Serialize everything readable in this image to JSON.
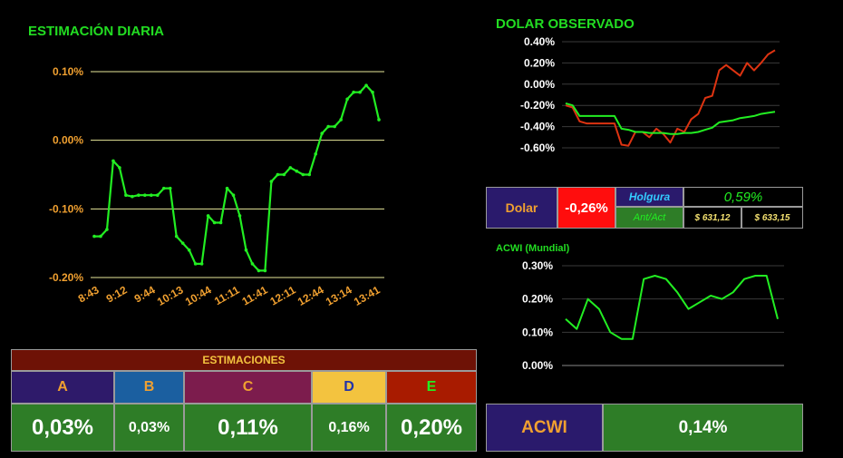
{
  "estimacion": {
    "title": "ESTIMACIÓN DIARIA",
    "chart_data": {
      "type": "line",
      "title": "ESTIMACIÓN DIARIA",
      "ylim": [
        -0.2,
        0.1
      ],
      "y_ticks": [
        "0.10%",
        "0.00%",
        "-0.10%",
        "-0.20%"
      ],
      "x_ticks": [
        "8:43",
        "9:12",
        "9:44",
        "10:13",
        "10:44",
        "11:11",
        "11:41",
        "12:11",
        "12:44",
        "13:14",
        "13:41"
      ],
      "grid": true,
      "series": [
        {
          "color": "#22ee22",
          "values": [
            -0.14,
            -0.14,
            -0.13,
            -0.03,
            -0.04,
            -0.08,
            -0.082,
            -0.08,
            -0.08,
            -0.08,
            -0.08,
            -0.07,
            -0.07,
            -0.14,
            -0.15,
            -0.16,
            -0.18,
            -0.18,
            -0.11,
            -0.12,
            -0.12,
            -0.07,
            -0.08,
            -0.11,
            -0.16,
            -0.18,
            -0.19,
            -0.19,
            -0.06,
            -0.05,
            -0.05,
            -0.04,
            -0.045,
            -0.05,
            -0.05,
            -0.02,
            0.01,
            0.02,
            0.02,
            0.03,
            0.06,
            0.07,
            0.07,
            0.08,
            0.07,
            0.03
          ]
        }
      ]
    }
  },
  "estimaciones": {
    "header": "ESTIMACIONES",
    "columns": [
      {
        "label": "A",
        "value": "0,03%"
      },
      {
        "label": "B",
        "value": "0,03%"
      },
      {
        "label": "C",
        "value": "0,11%"
      },
      {
        "label": "D",
        "value": "0,16%"
      },
      {
        "label": "E",
        "value": "0,20%"
      }
    ]
  },
  "dolar": {
    "title": "DOLAR OBSERVADO",
    "chart_data": {
      "type": "line",
      "title": "DOLAR OBSERVADO",
      "ylim": [
        -0.6,
        0.4
      ],
      "y_ticks": [
        "0.40%",
        "0.20%",
        "0.00%",
        "-0.20%",
        "-0.40%",
        "-0.60%"
      ],
      "grid": true,
      "series": [
        {
          "color": "#dd3311",
          "values": [
            -0.2,
            -0.22,
            -0.35,
            -0.37,
            -0.37,
            -0.37,
            -0.37,
            -0.37,
            -0.57,
            -0.58,
            -0.45,
            -0.45,
            -0.5,
            -0.42,
            -0.47,
            -0.55,
            -0.42,
            -0.45,
            -0.33,
            -0.28,
            -0.13,
            -0.11,
            0.13,
            0.18,
            0.13,
            0.08,
            0.2,
            0.13,
            0.2,
            0.28,
            0.32
          ]
        },
        {
          "color": "#22ee22",
          "values": [
            -0.18,
            -0.2,
            -0.3,
            -0.3,
            -0.3,
            -0.3,
            -0.3,
            -0.3,
            -0.42,
            -0.43,
            -0.45,
            -0.45,
            -0.46,
            -0.46,
            -0.46,
            -0.47,
            -0.47,
            -0.46,
            -0.46,
            -0.45,
            -0.43,
            -0.41,
            -0.36,
            -0.35,
            -0.34,
            -0.32,
            -0.31,
            -0.3,
            -0.28,
            -0.27,
            -0.26
          ]
        }
      ]
    },
    "box": {
      "label": "Dolar",
      "value": "-0,26%",
      "holgura_label": "Holgura",
      "holgura_value": "0,59%",
      "antact_label": "Ant/Act",
      "ant_value": "$ 631,12",
      "act_value": "$ 633,15"
    }
  },
  "acwi": {
    "title": "ACWI (Mundial)",
    "chart_data": {
      "type": "line",
      "title": "ACWI (Mundial)",
      "ylim": [
        0,
        0.3
      ],
      "y_ticks": [
        "0.30%",
        "0.20%",
        "0.10%",
        "0.00%"
      ],
      "grid": true,
      "series": [
        {
          "color": "#22ee22",
          "values": [
            0.14,
            0.11,
            0.2,
            0.17,
            0.1,
            0.08,
            0.08,
            0.26,
            0.27,
            0.26,
            0.22,
            0.17,
            0.19,
            0.21,
            0.2,
            0.22,
            0.26,
            0.27,
            0.27,
            0.14
          ]
        }
      ]
    },
    "box": {
      "label": "ACWI",
      "value": "0,14%"
    }
  },
  "colors": {
    "green_title": "#22dd22",
    "orange": "#f0a030",
    "cell_green": "#2e7d27",
    "maroon": "#6e1206",
    "purple": "#2e1a6a",
    "blue": "#1b5fa0",
    "berry": "#7c1c4d",
    "yellow": "#f3c33f",
    "red_cell": "#a81b00",
    "bright_red": "#ff0d0d",
    "navy": "#2a1a6c"
  }
}
